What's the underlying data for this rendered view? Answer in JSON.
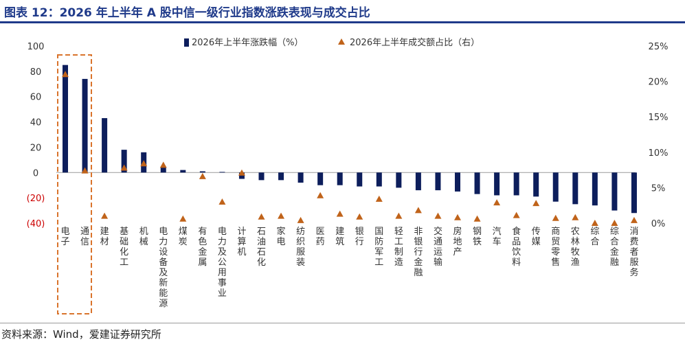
{
  "header": {
    "title": "图表 12：2026 年上半年 A 股中信一级行业指数涨跌表现与成交占比"
  },
  "footer": {
    "source": "资料来源：Wind，爱建证券研究所"
  },
  "colors": {
    "bar": "#0d1e5c",
    "marker": "#c0631a",
    "negative_tick": "#cc0000",
    "highlight_box": "#d9732b",
    "title": "#1f3a8a"
  },
  "chart_data": {
    "type": "bar",
    "categories": [
      "电子",
      "通信",
      "建材",
      "基础化工",
      "机械",
      "电力设备及新能源",
      "煤炭",
      "有色金属",
      "电力及公用事业",
      "计算机",
      "石油石化",
      "家电",
      "纺织服装",
      "医药",
      "建筑",
      "银行",
      "国防军工",
      "轻工制造",
      "非银行金融",
      "交通运输",
      "房地产",
      "钢铁",
      "汽车",
      "食品饮料",
      "传媒",
      "商贸零售",
      "农林牧渔",
      "综合",
      "综合金融",
      "消费者服务"
    ],
    "series": [
      {
        "name": "2026年上半年涨跌幅（%）",
        "type": "bar",
        "axis": "left",
        "values": [
          85,
          74,
          43,
          18,
          16,
          4,
          2,
          1,
          0.5,
          -5,
          -6,
          -6,
          -8,
          -10,
          -10,
          -11,
          -11,
          -12,
          -14,
          -14,
          -15,
          -17,
          -18,
          -18,
          -19,
          -23,
          -25,
          -26,
          -30,
          -32
        ]
      },
      {
        "name": "2026年上半年成交额占比（右）",
        "type": "scatter",
        "axis": "right",
        "values": [
          21.0,
          7.4,
          1.0,
          7.8,
          8.4,
          8.2,
          0.6,
          6.6,
          3.0,
          7.1,
          0.9,
          1.0,
          0.4,
          3.9,
          1.3,
          0.9,
          3.4,
          1.0,
          1.8,
          1.0,
          0.8,
          0.6,
          2.9,
          1.1,
          2.8,
          0.7,
          0.8,
          0.0,
          0.0,
          0.4
        ]
      }
    ],
    "y_left": {
      "ylim": [
        -40,
        100
      ],
      "ticks": [
        100,
        80,
        60,
        40,
        20,
        0,
        -20,
        -40
      ],
      "tick_labels": [
        "100",
        "80",
        "60",
        "40",
        "20",
        "0",
        "(20)",
        "(40)"
      ]
    },
    "y_right": {
      "ylim": [
        0,
        25
      ],
      "ticks": [
        25,
        20,
        15,
        10,
        5,
        0
      ],
      "tick_labels": [
        "25%",
        "20%",
        "15%",
        "10%",
        "5%",
        "0%"
      ]
    },
    "legend_position": "top-center",
    "highlight_categories": [
      "电子",
      "通信"
    ],
    "grid": false
  }
}
